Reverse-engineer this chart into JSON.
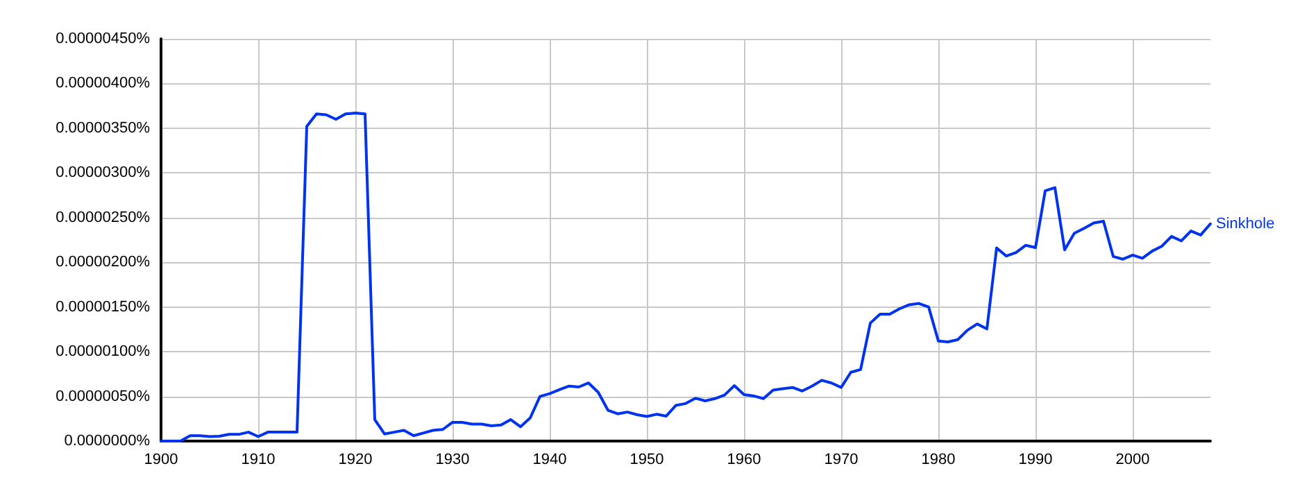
{
  "chart_data": {
    "type": "line",
    "x": [
      1900,
      1901,
      1902,
      1903,
      1904,
      1905,
      1906,
      1907,
      1908,
      1909,
      1910,
      1911,
      1912,
      1913,
      1914,
      1915,
      1916,
      1917,
      1918,
      1919,
      1920,
      1921,
      1922,
      1923,
      1924,
      1925,
      1926,
      1927,
      1928,
      1929,
      1930,
      1931,
      1932,
      1933,
      1934,
      1935,
      1936,
      1937,
      1938,
      1939,
      1940,
      1941,
      1942,
      1943,
      1944,
      1945,
      1946,
      1947,
      1948,
      1949,
      1950,
      1951,
      1952,
      1953,
      1954,
      1955,
      1956,
      1957,
      1958,
      1959,
      1960,
      1961,
      1962,
      1963,
      1964,
      1965,
      1966,
      1967,
      1968,
      1969,
      1970,
      1971,
      1972,
      1973,
      1974,
      1975,
      1976,
      1977,
      1978,
      1979,
      1980,
      1981,
      1982,
      1983,
      1984,
      1985,
      1986,
      1987,
      1988,
      1989,
      1990,
      1991,
      1992,
      1993,
      1994,
      1995,
      1996,
      1997,
      1998,
      1999,
      2000,
      2001,
      2002,
      2003,
      2004,
      2005,
      2006,
      2007,
      2008
    ],
    "series": [
      {
        "name": "Sinkhole",
        "color": "#0033ee",
        "values": [
          0,
          0,
          0,
          6e-08,
          6e-08,
          5e-08,
          5.5e-08,
          7.5e-08,
          7.5e-08,
          1e-07,
          5e-08,
          1e-07,
          1e-07,
          1e-07,
          1e-07,
          3.52e-06,
          3.66e-06,
          3.65e-06,
          3.6e-06,
          3.66e-06,
          3.67e-06,
          3.66e-06,
          2.4e-07,
          8e-08,
          1e-07,
          1.2e-07,
          6e-08,
          9e-08,
          1.2e-07,
          1.3e-07,
          2.1e-07,
          2.1e-07,
          1.9e-07,
          1.9e-07,
          1.7e-07,
          1.8e-07,
          2.4e-07,
          1.6e-07,
          2.6e-07,
          5e-07,
          5.3e-07,
          5.75e-07,
          6.15e-07,
          6.05e-07,
          6.5e-07,
          5.45e-07,
          3.45e-07,
          3.05e-07,
          3.25e-07,
          2.95e-07,
          2.75e-07,
          3e-07,
          2.8e-07,
          4e-07,
          4.2e-07,
          4.8e-07,
          4.5e-07,
          4.75e-07,
          5.15e-07,
          6.2e-07,
          5.2e-07,
          5.05e-07,
          4.75e-07,
          5.7e-07,
          5.85e-07,
          6e-07,
          5.6e-07,
          6.15e-07,
          6.8e-07,
          6.5e-07,
          6e-07,
          7.7e-07,
          8e-07,
          1.32e-06,
          1.42e-06,
          1.42e-06,
          1.48e-06,
          1.525e-06,
          1.54e-06,
          1.5e-06,
          1.12e-06,
          1.11e-06,
          1.135e-06,
          1.24e-06,
          1.31e-06,
          1.255e-06,
          2.16e-06,
          2.07e-06,
          2.11e-06,
          2.19e-06,
          2.165e-06,
          2.8e-06,
          2.835e-06,
          2.14e-06,
          2.325e-06,
          2.38e-06,
          2.44e-06,
          2.46e-06,
          2.065e-06,
          2.035e-06,
          2.08e-06,
          2.045e-06,
          2.125e-06,
          2.18e-06,
          2.29e-06,
          2.24e-06,
          2.35e-06,
          2.305e-06,
          2.43e-06
        ]
      }
    ],
    "xlim": [
      1900,
      2008
    ],
    "xticks": [
      1900,
      1910,
      1920,
      1930,
      1940,
      1950,
      1960,
      1970,
      1980,
      1990,
      2000
    ],
    "ylim": [
      0,
      4.5e-06
    ],
    "yticks": [
      {
        "value": 0,
        "label": "0.0000000%"
      },
      {
        "value": 5e-07,
        "label": "0.00000050%"
      },
      {
        "value": 1e-06,
        "label": "0.00000100%"
      },
      {
        "value": 1.5e-06,
        "label": "0.00000150%"
      },
      {
        "value": 2e-06,
        "label": "0.00000200%"
      },
      {
        "value": 2.5e-06,
        "label": "0.00000250%"
      },
      {
        "value": 3e-06,
        "label": "0.00000300%"
      },
      {
        "value": 3.5e-06,
        "label": "0.00000350%"
      },
      {
        "value": 4e-06,
        "label": "0.00000400%"
      },
      {
        "value": 4.5e-06,
        "label": "0.00000450%"
      }
    ],
    "grid": true,
    "marker": "none",
    "line_style": "solid"
  }
}
